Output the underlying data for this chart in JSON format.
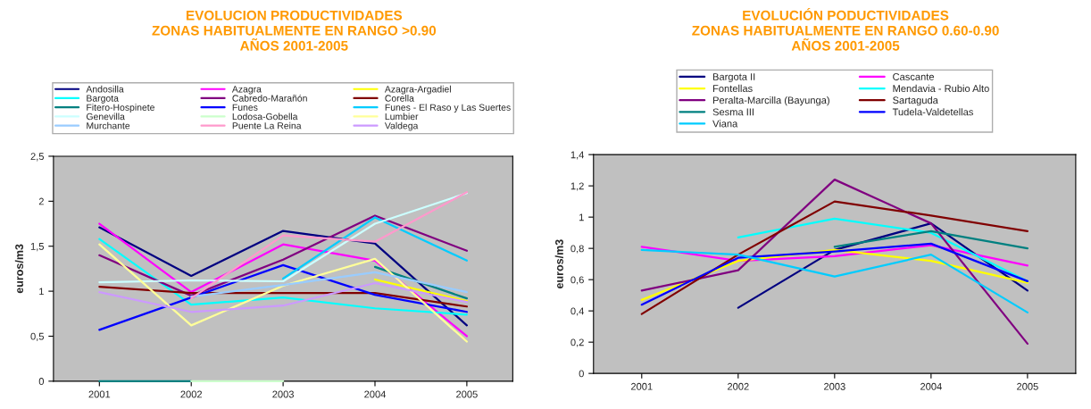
{
  "chart_data": [
    {
      "type": "line",
      "title": "EVOLUCION PRODUCTIVIDADES\nZONAS HABITUALMENTE EN RANGO >0.90\nAÑOS 2001-2005",
      "ylabel": "euros/m3",
      "categories": [
        "2001",
        "2002",
        "2003",
        "2004",
        "2005"
      ],
      "ylim": [
        0,
        2.5
      ],
      "yticks": [
        0,
        {
          "value": 0.5,
          "label": "0,5"
        },
        1,
        {
          "value": 1.5,
          "label": "1,5"
        },
        2,
        {
          "value": 2.5,
          "label": "2,5"
        }
      ],
      "grid": false,
      "legend": "top",
      "marker": "none",
      "series": [
        {
          "name": "Andosilla",
          "color": "#000080",
          "values": [
            1.71,
            1.17,
            1.67,
            1.53,
            0.62
          ]
        },
        {
          "name": "Azagra",
          "color": "#ff00ff",
          "values": [
            1.75,
            0.99,
            1.52,
            1.34,
            0.5
          ]
        },
        {
          "name": "Azagra-Argadiel",
          "color": "#ffff00",
          "values": [
            null,
            null,
            null,
            1.13,
            0.89
          ]
        },
        {
          "name": "Bargota",
          "color": "#00ffff",
          "values": [
            1.58,
            0.85,
            0.93,
            0.81,
            0.74
          ]
        },
        {
          "name": "Cabredo-Marañón",
          "color": "#800080",
          "values": [
            1.4,
            0.95,
            1.35,
            1.84,
            1.45
          ]
        },
        {
          "name": "Corella",
          "color": "#800000",
          "values": [
            1.05,
            0.98,
            0.98,
            0.98,
            0.83
          ]
        },
        {
          "name": "Fitero-Hospinete",
          "color": "#008080",
          "values": [
            0,
            0,
            null,
            1.27,
            0.92
          ]
        },
        {
          "name": "Funes",
          "color": "#0000ff",
          "values": [
            0.57,
            0.93,
            1.29,
            0.96,
            0.77
          ]
        },
        {
          "name": "Funes - El Raso y Las Suertes",
          "color": "#00ccff",
          "values": [
            null,
            null,
            1.14,
            1.82,
            1.34
          ]
        },
        {
          "name": "Genevilla",
          "color": "#ccffff",
          "values": [
            1.1,
            1.12,
            1.11,
            1.75,
            2.09
          ]
        },
        {
          "name": "Lodosa-Gobella",
          "color": "#ccffcc",
          "values": [
            null,
            0,
            0,
            null,
            null
          ]
        },
        {
          "name": "Lumbier",
          "color": "#ffff99",
          "values": [
            1.52,
            0.62,
            1.06,
            1.36,
            0.44
          ]
        },
        {
          "name": "Murchante",
          "color": "#99ccff",
          "values": [
            null,
            0.94,
            1.07,
            1.21,
            0.99
          ]
        },
        {
          "name": "Puente La Reina",
          "color": "#ff99cc",
          "values": [
            null,
            0.92,
            1.62,
            1.55,
            2.1
          ]
        },
        {
          "name": "Valdega",
          "color": "#cc99ff",
          "values": [
            0.99,
            0.77,
            0.84,
            1.09,
            0.88
          ]
        }
      ]
    },
    {
      "type": "line",
      "title": "EVOLUCIÓN PODUCTIVIDADES\nZONAS HABITUALMENTE EN RANGO 0.60-0.90\nAÑOS 2001-2005",
      "ylabel": "euros/m3",
      "categories": [
        "2001",
        "2002",
        "2003",
        "2004",
        "2005"
      ],
      "ylim": [
        0,
        1.4
      ],
      "yticks": [
        0,
        {
          "value": 0.2,
          "label": "0,2"
        },
        {
          "value": 0.4,
          "label": "0,4"
        },
        {
          "value": 0.6,
          "label": "0,6"
        },
        {
          "value": 0.8,
          "label": "0,8"
        },
        1,
        {
          "value": 1.2,
          "label": "1,2"
        },
        {
          "value": 1.4,
          "label": "1,4"
        }
      ],
      "grid": false,
      "legend": "top",
      "marker": "none",
      "series": [
        {
          "name": "Bargota II",
          "color": "#000080",
          "values": [
            null,
            0.42,
            0.79,
            0.96,
            0.53
          ]
        },
        {
          "name": "Cascante",
          "color": "#ff00ff",
          "values": [
            0.81,
            0.72,
            0.75,
            0.82,
            0.69
          ]
        },
        {
          "name": "Fontellas",
          "color": "#ffff00",
          "values": [
            0.47,
            0.72,
            0.79,
            0.72,
            0.58
          ]
        },
        {
          "name": "Mendavia - Rubio Alto",
          "color": "#00ffff",
          "values": [
            null,
            0.87,
            0.99,
            0.9,
            0.59
          ]
        },
        {
          "name": "Peralta-Marcilla (Bayunga)",
          "color": "#800080",
          "values": [
            0.53,
            0.66,
            1.24,
            0.96,
            0.19
          ]
        },
        {
          "name": "Sartaguda",
          "color": "#800000",
          "values": [
            0.38,
            0.76,
            1.1,
            1.01,
            0.91
          ]
        },
        {
          "name": "Sesma III",
          "color": "#008080",
          "values": [
            null,
            null,
            0.81,
            0.91,
            0.8
          ]
        },
        {
          "name": "Tudela-Valdetellas",
          "color": "#0000ff",
          "values": [
            0.44,
            0.74,
            0.78,
            0.83,
            0.59
          ]
        },
        {
          "name": "Viana",
          "color": "#00ccff",
          "values": [
            0.79,
            0.76,
            0.62,
            0.76,
            0.39
          ]
        }
      ]
    }
  ]
}
